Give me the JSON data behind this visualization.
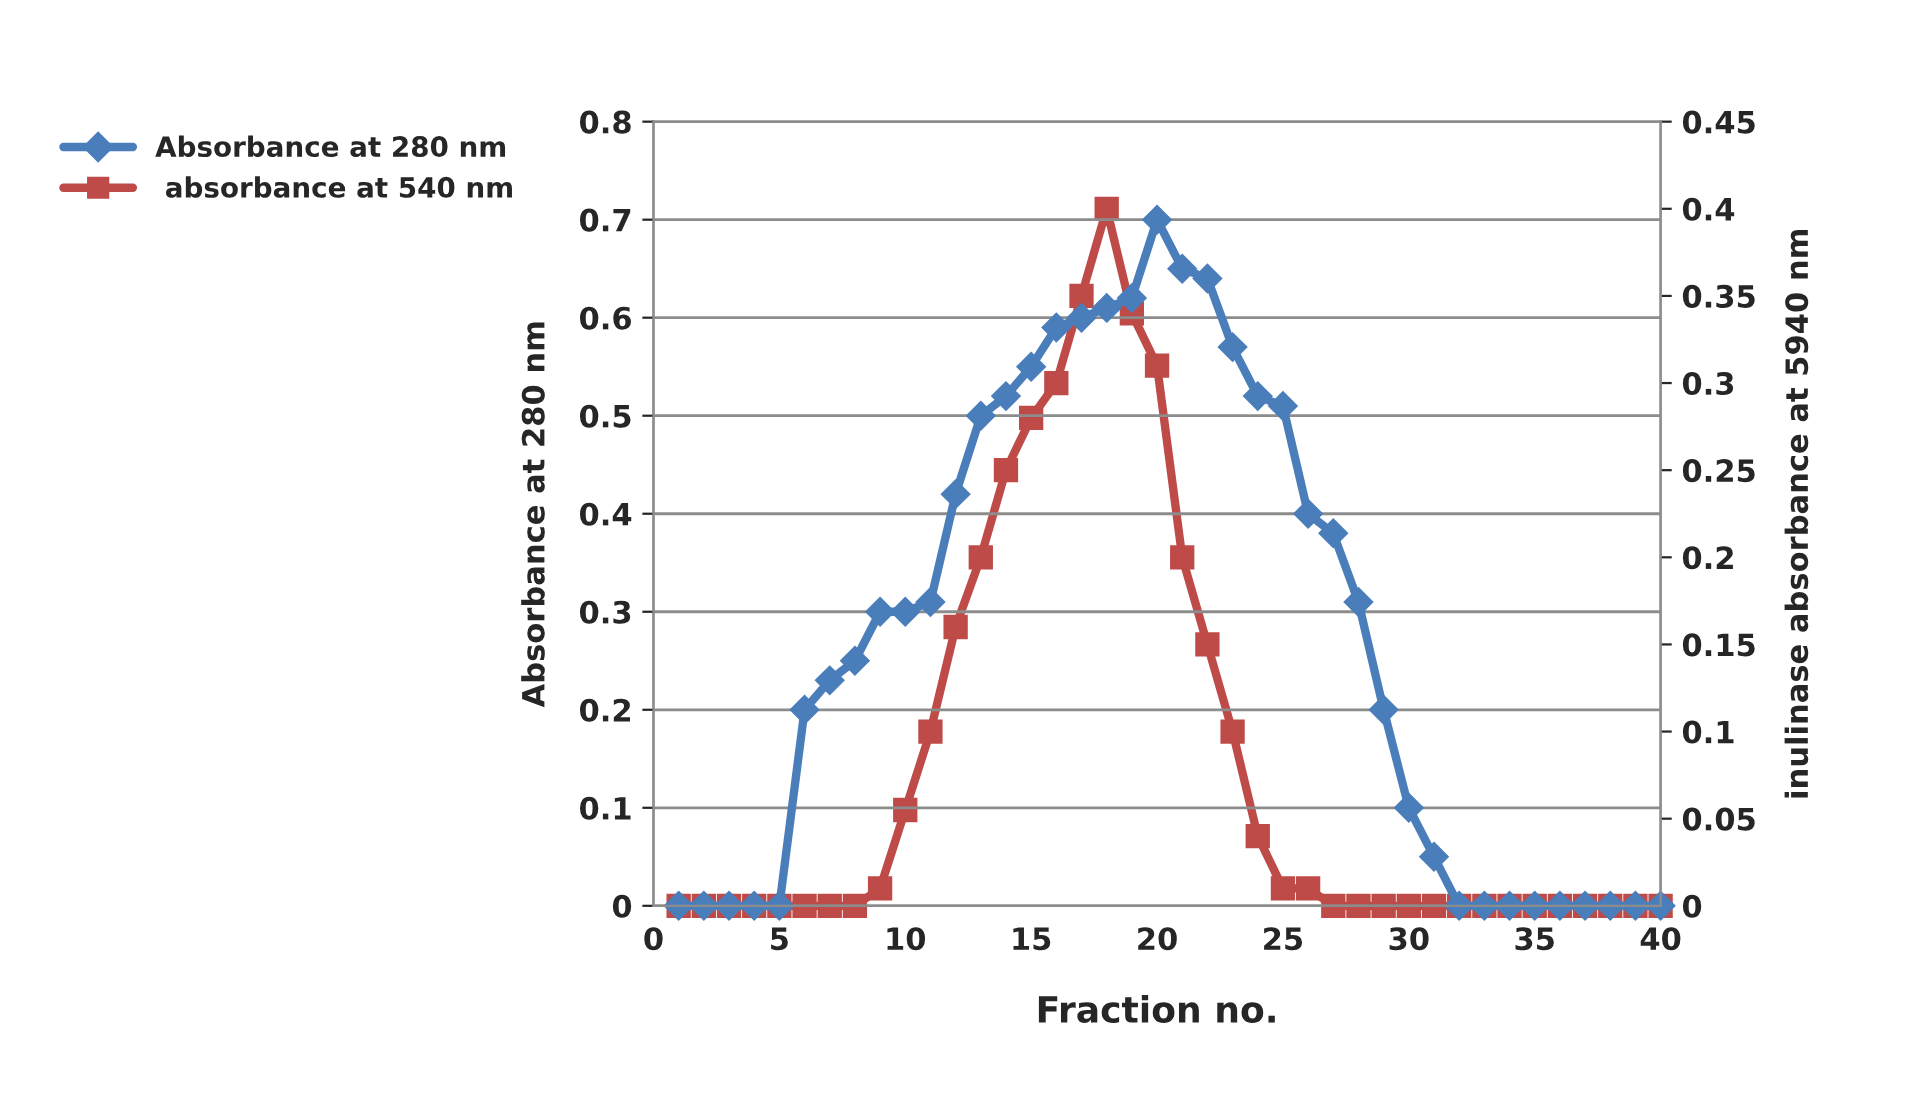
{
  "chart_data": {
    "type": "line",
    "xlabel": "Fraction no.",
    "ylabel": "Absorbance at 280 nm",
    "y2label": "inulinase absorbance at 5940 nm",
    "x": [
      1,
      2,
      3,
      4,
      5,
      6,
      7,
      8,
      9,
      10,
      11,
      12,
      13,
      14,
      15,
      16,
      17,
      18,
      19,
      20,
      21,
      22,
      23,
      24,
      25,
      26,
      27,
      28,
      29,
      30,
      31,
      32,
      33,
      34,
      35,
      36,
      37,
      38,
      39,
      40
    ],
    "series": [
      {
        "name": "Absorbance at 280 nm",
        "color": "#4a7ebb",
        "marker": "diamond",
        "values": [
          0,
          0,
          0,
          0,
          0,
          0.2,
          0.23,
          0.25,
          0.3,
          0.3,
          0.31,
          0.42,
          0.5,
          0.52,
          0.55,
          0.59,
          0.6,
          0.61,
          0.62,
          0.7,
          0.65,
          0.64,
          0.57,
          0.52,
          0.51,
          0.4,
          0.38,
          0.31,
          0.2,
          0.1,
          0.05,
          0,
          0,
          0,
          0,
          0,
          0,
          0,
          0,
          0
        ]
      },
      {
        "name": " absorbance at 540 nm",
        "color": "#be4b48",
        "marker": "square",
        "axis": "y2",
        "values": [
          0,
          0,
          0,
          0,
          0,
          0,
          0,
          0,
          0.01,
          0.055,
          0.1,
          0.16,
          0.2,
          0.25,
          0.28,
          0.3,
          0.35,
          0.4,
          0.34,
          0.31,
          0.2,
          0.15,
          0.1,
          0.04,
          0.01,
          0.01,
          0,
          0,
          0,
          0,
          0,
          0,
          0,
          0,
          0,
          0,
          0,
          0,
          0,
          0
        ]
      }
    ],
    "xlim": [
      0,
      40
    ],
    "xticks": [
      0,
      5,
      10,
      15,
      20,
      25,
      30,
      35,
      40
    ],
    "ylim": [
      0,
      0.8
    ],
    "yticks": [
      0,
      0.1,
      0.2,
      0.3,
      0.4,
      0.5,
      0.6,
      0.7,
      0.8
    ],
    "y2lim": [
      0,
      0.45
    ],
    "y2ticks": [
      0,
      0.05,
      0.1,
      0.15,
      0.2,
      0.25,
      0.3,
      0.35,
      0.4,
      0.45
    ],
    "grid": "y",
    "legend": "top left",
    "line_style": "solid"
  }
}
